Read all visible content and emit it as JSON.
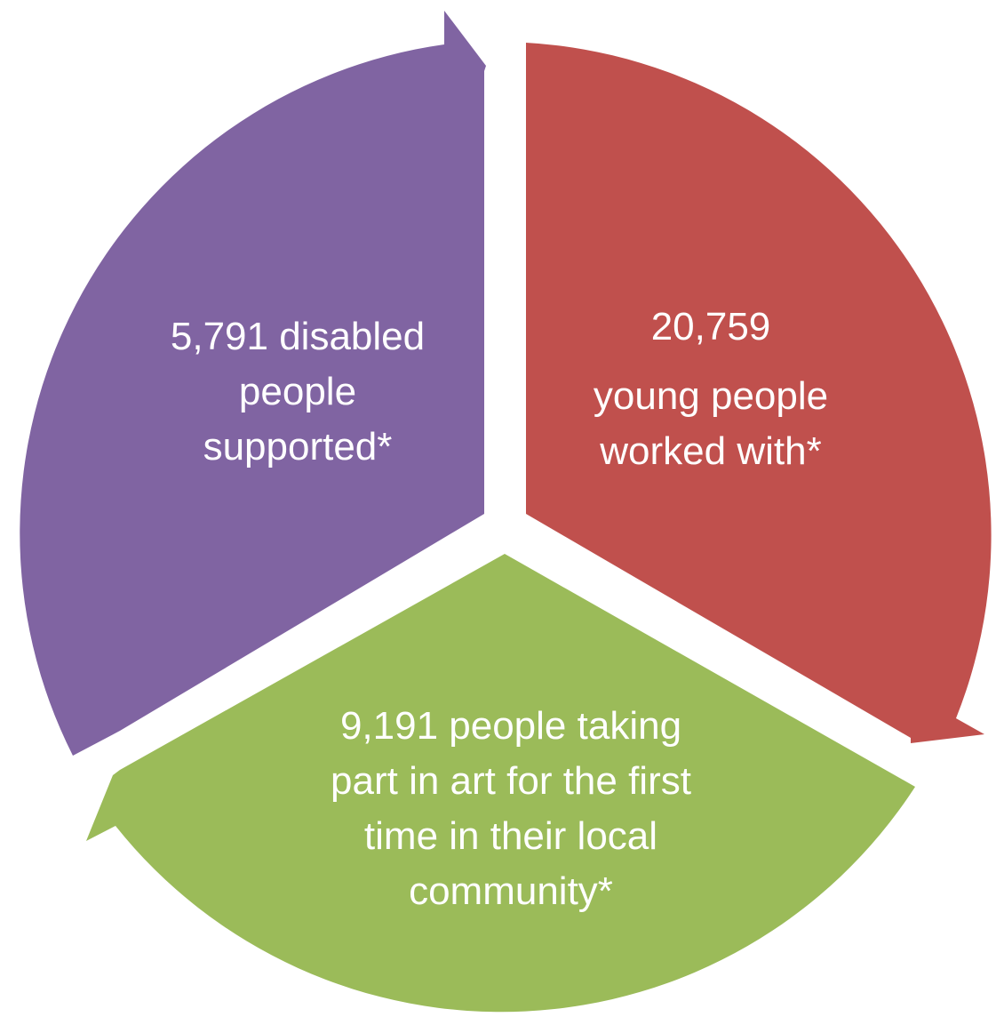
{
  "segments": [
    {
      "id": "disabled",
      "color": "#8064a2",
      "lines": [
        "5,791  disabled",
        "people",
        "supported*"
      ]
    },
    {
      "id": "young",
      "color": "#c0504d",
      "number": "20,759",
      "lines": [
        "young people",
        "worked with*"
      ]
    },
    {
      "id": "first-time",
      "color": "#9bbb59",
      "lines": [
        "9,191 people taking",
        "part in art for the first",
        "time in their local",
        "community*"
      ]
    }
  ]
}
